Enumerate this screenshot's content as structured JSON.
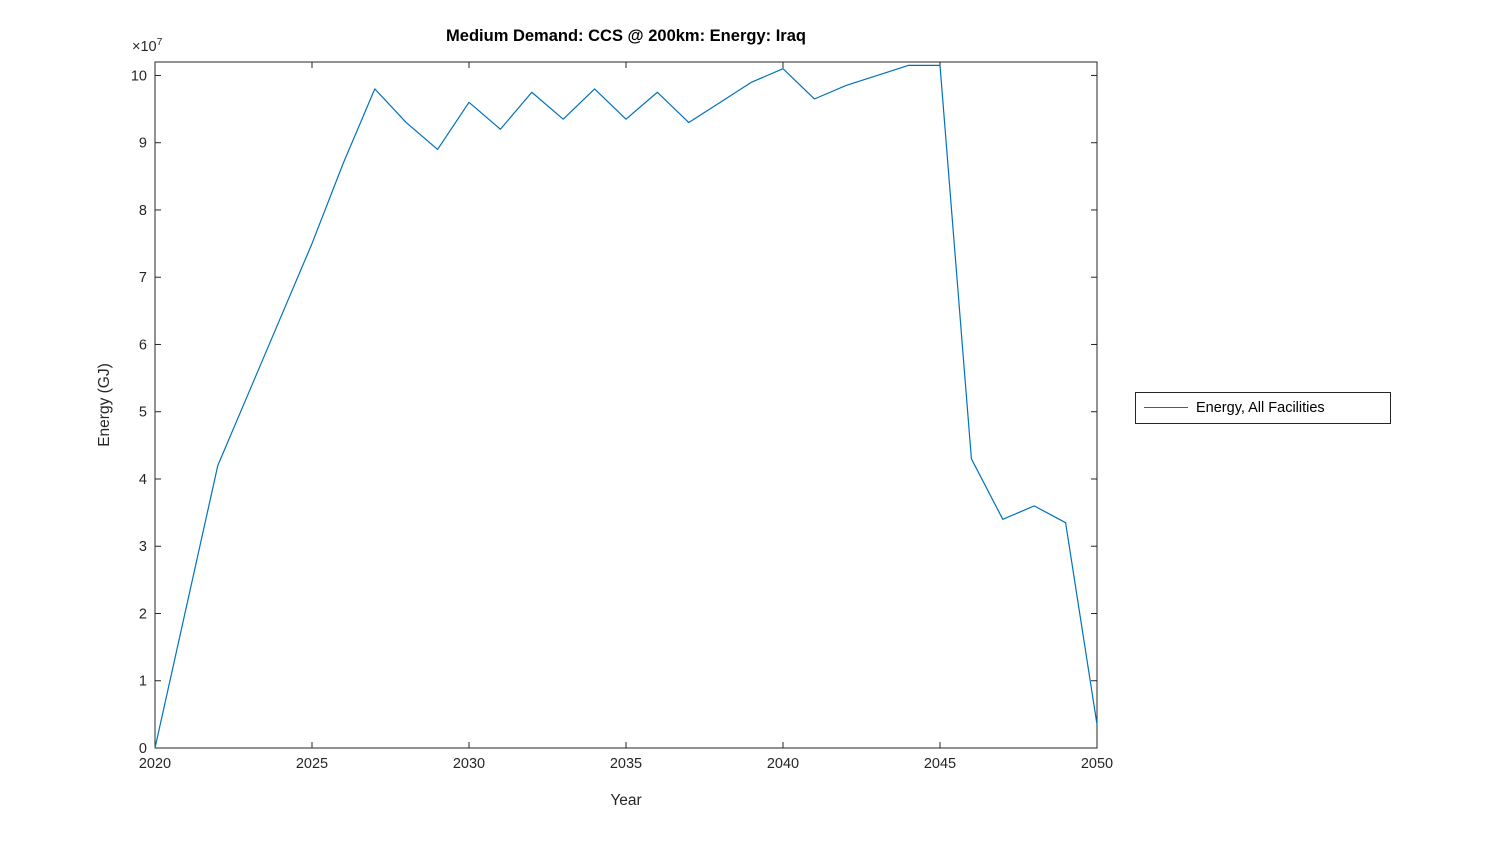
{
  "figure": {
    "title": "Medium Demand: CCS @ 200km: Energy: Iraq",
    "xlabel": "Year",
    "ylabel": "Energy (GJ)",
    "y_axis_multiplier_base": "×10",
    "y_axis_multiplier_exponent": "7"
  },
  "legend": {
    "position": "right-outside",
    "entries": [
      {
        "label": "Energy, All Facilities",
        "color": "#0072BD",
        "marker": "line"
      }
    ]
  },
  "colors": {
    "line": "#0072BD",
    "axis": "#262626",
    "background": "#ffffff"
  },
  "chart_data": {
    "type": "line",
    "title": "Medium Demand: CCS @ 200km: Energy: Iraq",
    "xlabel": "Year",
    "ylabel": "Energy (GJ)",
    "values_unit": "GJ × 10^7",
    "grid": false,
    "legend_position": "right-outside",
    "xlim": [
      2020,
      2050
    ],
    "ylim": [
      0,
      10.2
    ],
    "xticks": [
      2020,
      2025,
      2030,
      2035,
      2040,
      2045,
      2050
    ],
    "yticks": [
      0,
      1,
      2,
      3,
      4,
      5,
      6,
      7,
      8,
      9,
      10
    ],
    "x": [
      2020,
      2021,
      2022,
      2023,
      2024,
      2025,
      2026,
      2027,
      2028,
      2029,
      2030,
      2031,
      2032,
      2033,
      2034,
      2035,
      2036,
      2037,
      2038,
      2039,
      2040,
      2041,
      2042,
      2043,
      2044,
      2045,
      2046,
      2047,
      2048,
      2049,
      2050
    ],
    "series": [
      {
        "name": "Energy, All Facilities",
        "color": "#0072BD",
        "values": [
          0,
          2.1,
          4.2,
          5.3,
          6.4,
          7.5,
          8.7,
          9.8,
          9.3,
          8.9,
          9.6,
          9.2,
          9.75,
          9.35,
          9.8,
          9.35,
          9.75,
          9.3,
          9.6,
          9.9,
          10.1,
          9.65,
          9.85,
          10.0,
          10.15,
          10.15,
          4.3,
          3.4,
          3.6,
          3.35,
          0.35
        ]
      }
    ]
  }
}
